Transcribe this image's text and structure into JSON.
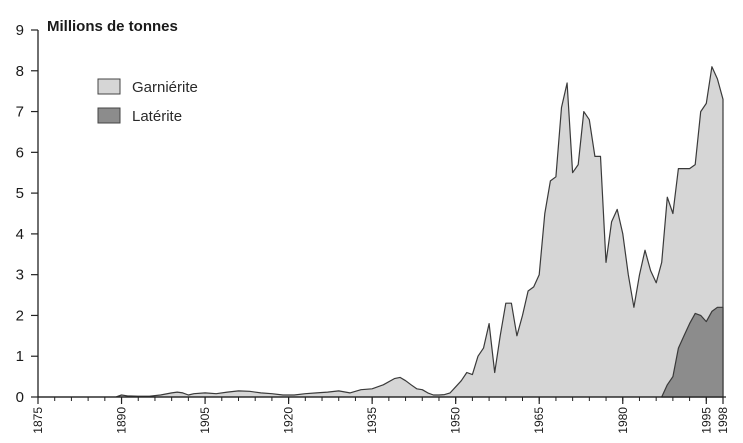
{
  "chart_data": {
    "type": "area",
    "unit_label": "Millions de tonnes",
    "xlabel": "",
    "ylabel": "",
    "xlim": [
      1875,
      1998
    ],
    "ylim": [
      0,
      9
    ],
    "y_ticks": [
      0,
      1,
      2,
      3,
      4,
      5,
      6,
      7,
      8,
      9
    ],
    "x_ticks": [
      1875,
      1890,
      1905,
      1920,
      1935,
      1950,
      1965,
      1980,
      1995,
      1998
    ],
    "legend_position": "top-left",
    "grid": false,
    "series": [
      {
        "name": "Garniérite",
        "color": "#d6d6d6",
        "x": [
          1875,
          1888,
          1889,
          1890,
          1891,
          1893,
          1895,
          1897,
          1899,
          1900,
          1901,
          1902,
          1903,
          1905,
          1907,
          1909,
          1911,
          1913,
          1915,
          1917,
          1919,
          1921,
          1923,
          1925,
          1927,
          1929,
          1931,
          1933,
          1935,
          1937,
          1939,
          1940,
          1941,
          1942,
          1943,
          1944,
          1945,
          1946,
          1947,
          1948,
          1949,
          1950,
          1951,
          1952,
          1953,
          1954,
          1955,
          1956,
          1957,
          1958,
          1959,
          1960,
          1961,
          1962,
          1963,
          1964,
          1965,
          1966,
          1967,
          1968,
          1969,
          1970,
          1971,
          1972,
          1973,
          1974,
          1975,
          1976,
          1977,
          1978,
          1979,
          1980,
          1981,
          1982,
          1983,
          1984,
          1985,
          1986,
          1987,
          1988,
          1989,
          1990,
          1991,
          1992,
          1993,
          1994,
          1995,
          1996,
          1997,
          1998
        ],
        "values": [
          0,
          0,
          0,
          0.05,
          0.03,
          0.02,
          0.02,
          0.05,
          0.1,
          0.12,
          0.1,
          0.05,
          0.08,
          0.1,
          0.08,
          0.12,
          0.15,
          0.14,
          0.1,
          0.08,
          0.05,
          0.05,
          0.08,
          0.1,
          0.12,
          0.15,
          0.1,
          0.18,
          0.2,
          0.3,
          0.45,
          0.48,
          0.4,
          0.3,
          0.2,
          0.18,
          0.1,
          0.05,
          0.05,
          0.06,
          0.1,
          0.25,
          0.4,
          0.6,
          0.55,
          1.0,
          1.2,
          1.8,
          0.6,
          1.5,
          2.3,
          2.3,
          1.5,
          2.0,
          2.6,
          2.7,
          3.0,
          4.5,
          5.3,
          5.4,
          7.1,
          7.7,
          5.5,
          5.7,
          7.0,
          6.8,
          5.9,
          5.9,
          3.3,
          4.3,
          4.6,
          4.0,
          3.0,
          2.2,
          3.0,
          3.6,
          3.1,
          2.8,
          3.3,
          4.9,
          4.5,
          5.6,
          5.6,
          5.6,
          5.7,
          7.0,
          7.2,
          8.1,
          7.8,
          7.3
        ]
      },
      {
        "name": "Latérite",
        "color": "#8c8c8c",
        "x": [
          1987,
          1988,
          1989,
          1990,
          1991,
          1992,
          1993,
          1994,
          1995,
          1996,
          1997,
          1998
        ],
        "values": [
          0,
          0.3,
          0.5,
          1.2,
          1.5,
          1.8,
          2.05,
          2.0,
          1.85,
          2.1,
          2.2,
          2.2
        ]
      }
    ]
  }
}
